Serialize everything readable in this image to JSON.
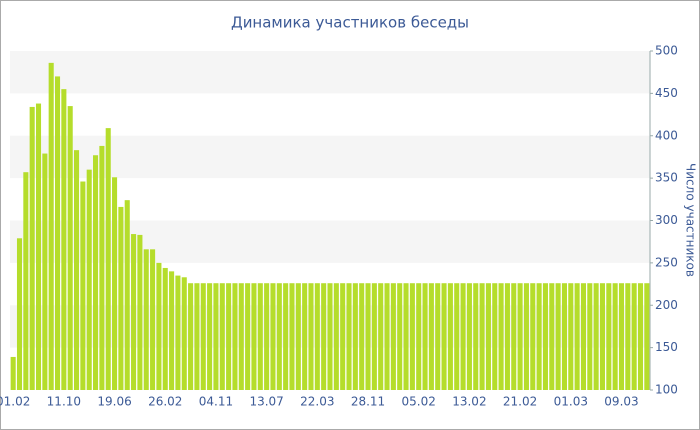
{
  "chart_data": {
    "type": "bar",
    "title": "Динамика участников беседы",
    "y_axis_label": "Число участников",
    "categories": [
      "01.02",
      null,
      null,
      null,
      null,
      null,
      null,
      null,
      "11.10",
      null,
      null,
      null,
      null,
      null,
      null,
      null,
      "19.06",
      null,
      null,
      null,
      null,
      null,
      null,
      null,
      "26.02",
      null,
      null,
      null,
      null,
      null,
      null,
      null,
      "04.11",
      null,
      null,
      null,
      null,
      null,
      null,
      null,
      "13.07",
      null,
      null,
      null,
      null,
      null,
      null,
      null,
      "22.03",
      null,
      null,
      null,
      null,
      null,
      null,
      null,
      "28.11",
      null,
      null,
      null,
      null,
      null,
      null,
      null,
      "05.02",
      null,
      null,
      null,
      null,
      null,
      null,
      null,
      "13.02",
      null,
      null,
      null,
      null,
      null,
      null,
      null,
      "21.02",
      null,
      null,
      null,
      null,
      null,
      null,
      null,
      "01.03",
      null,
      null,
      null,
      null,
      null,
      null,
      null,
      "09.03",
      null,
      null,
      null,
      null
    ],
    "values": [
      139,
      279,
      357,
      434,
      438,
      379,
      486,
      470,
      455,
      435,
      383,
      346,
      360,
      377,
      388,
      409,
      351,
      316,
      324,
      284,
      283,
      266,
      266,
      250,
      244,
      240,
      235,
      233,
      226,
      226,
      226,
      226,
      226,
      226,
      226,
      226,
      226,
      226,
      226,
      226,
      226,
      226,
      226,
      226,
      226,
      226,
      226,
      226,
      226,
      226,
      226,
      226,
      226,
      226,
      226,
      226,
      226,
      226,
      226,
      226,
      226,
      226,
      226,
      226,
      226,
      226,
      226,
      226,
      226,
      226,
      226,
      226,
      226,
      226,
      226,
      226,
      226,
      226,
      226,
      226,
      226,
      226,
      226,
      226,
      226,
      226,
      226,
      226,
      226,
      226,
      226,
      226,
      226,
      226,
      226,
      226,
      226,
      226,
      226,
      226,
      226
    ],
    "color": "#b5dd2b",
    "ylim": [
      100,
      500
    ],
    "yticks": [
      100,
      150,
      200,
      250,
      300,
      350,
      400,
      450,
      500
    ],
    "grid": true
  }
}
